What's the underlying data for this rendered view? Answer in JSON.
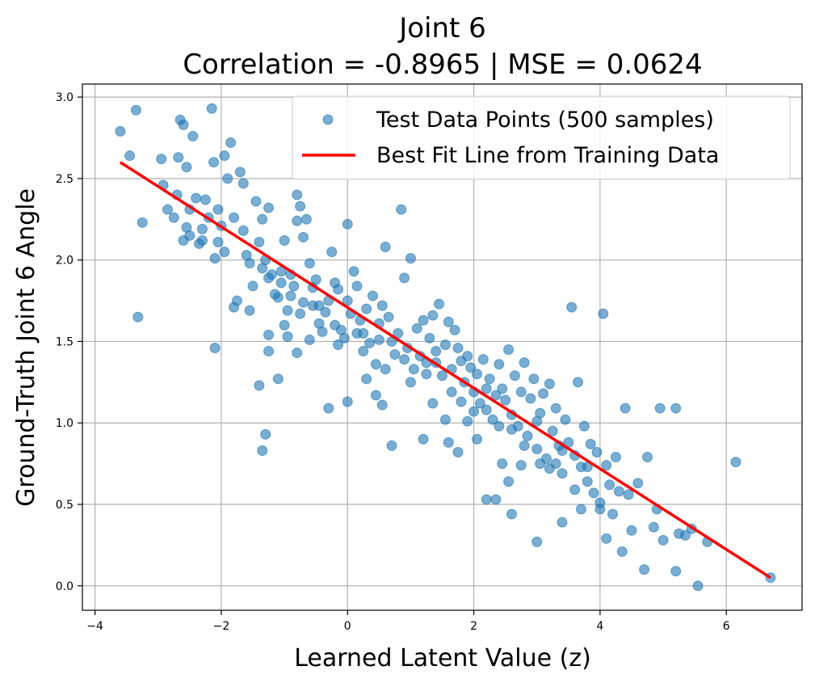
{
  "chart_data": {
    "type": "scatter",
    "title": "Joint 6",
    "subtitle": "Correlation = -0.8965 | MSE = 0.0624",
    "xlabel": "Learned Latent Value (z)",
    "ylabel": "Ground-Truth Joint 6 Angle",
    "xlim": [
      -4.2,
      7.2
    ],
    "ylim": [
      -0.15,
      3.08
    ],
    "xticks": [
      -4,
      -2,
      0,
      2,
      4,
      6
    ],
    "xtick_labels": [
      "−4",
      "−2",
      "0",
      "2",
      "4",
      "6"
    ],
    "yticks": [
      0.0,
      0.5,
      1.0,
      1.5,
      2.0,
      2.5,
      3.0
    ],
    "ytick_labels": [
      "0.0",
      "0.5",
      "1.0",
      "1.5",
      "2.0",
      "2.5",
      "3.0"
    ],
    "grid": true,
    "legend_position": "top-right",
    "colors": {
      "points": "#1f77b4",
      "fit_line": "#ff0000"
    },
    "series": [
      {
        "name": "Test Data Points (500 samples)",
        "type": "scatter",
        "points": [
          [
            -3.6,
            2.79
          ],
          [
            -3.45,
            2.64
          ],
          [
            -3.35,
            2.92
          ],
          [
            -3.25,
            2.23
          ],
          [
            -3.32,
            1.65
          ],
          [
            -2.95,
            2.62
          ],
          [
            -2.92,
            2.46
          ],
          [
            -2.75,
            2.26
          ],
          [
            -2.7,
            2.4
          ],
          [
            -2.68,
            2.63
          ],
          [
            -2.65,
            2.86
          ],
          [
            -2.6,
            2.83
          ],
          [
            -2.55,
            2.57
          ],
          [
            -2.5,
            2.31
          ],
          [
            -2.5,
            2.15
          ],
          [
            -2.45,
            2.76
          ],
          [
            -2.4,
            2.38
          ],
          [
            -2.35,
            2.1
          ],
          [
            -2.3,
            2.19
          ],
          [
            -2.2,
            2.26
          ],
          [
            -2.15,
            2.93
          ],
          [
            -2.12,
            2.6
          ],
          [
            -2.1,
            2.01
          ],
          [
            -2.05,
            2.31
          ],
          [
            -2.0,
            2.21
          ],
          [
            -1.95,
            2.64
          ],
          [
            -1.9,
            2.5
          ],
          [
            -1.85,
            2.72
          ],
          [
            -1.8,
            2.26
          ],
          [
            -1.8,
            1.71
          ],
          [
            -1.7,
            2.54
          ],
          [
            -1.65,
            2.47
          ],
          [
            -1.6,
            2.03
          ],
          [
            -1.55,
            1.69
          ],
          [
            -1.5,
            1.84
          ],
          [
            -1.45,
            2.36
          ],
          [
            -1.4,
            2.11
          ],
          [
            -1.35,
            2.25
          ],
          [
            -1.3,
            2.0
          ],
          [
            -1.25,
            2.32
          ],
          [
            -1.2,
            1.91
          ],
          [
            -1.15,
            1.79
          ],
          [
            -1.1,
            1.77
          ],
          [
            -1.05,
            1.93
          ],
          [
            -1.0,
            2.12
          ],
          [
            -1.0,
            1.6
          ],
          [
            -0.95,
            1.53
          ],
          [
            -0.9,
            1.91
          ],
          [
            -0.85,
            1.84
          ],
          [
            -0.8,
            2.4
          ],
          [
            -0.8,
            2.24
          ],
          [
            -0.75,
            2.33
          ],
          [
            -0.7,
            2.14
          ],
          [
            -0.7,
            1.74
          ],
          [
            -0.65,
            2.25
          ],
          [
            -0.6,
            1.98
          ],
          [
            -0.55,
            1.72
          ],
          [
            -0.5,
            1.88
          ],
          [
            -0.45,
            1.61
          ],
          [
            -0.4,
            1.56
          ],
          [
            -0.35,
            1.68
          ],
          [
            -0.3,
            1.75
          ],
          [
            -0.25,
            2.05
          ],
          [
            -0.2,
            1.86
          ],
          [
            -0.15,
            1.82
          ],
          [
            -0.1,
            1.57
          ],
          [
            -0.05,
            1.52
          ],
          [
            0.0,
            2.22
          ],
          [
            0.0,
            1.75
          ],
          [
            0.05,
            1.67
          ],
          [
            0.1,
            1.93
          ],
          [
            0.15,
            1.84
          ],
          [
            0.2,
            1.63
          ],
          [
            0.25,
            1.55
          ],
          [
            0.3,
            1.7
          ],
          [
            0.35,
            1.49
          ],
          [
            0.4,
            1.78
          ],
          [
            0.45,
            1.36
          ],
          [
            0.5,
            1.61
          ],
          [
            0.55,
            1.72
          ],
          [
            0.6,
            2.08
          ],
          [
            0.65,
            1.65
          ],
          [
            0.7,
            1.5
          ],
          [
            0.75,
            1.42
          ],
          [
            0.8,
            1.55
          ],
          [
            0.85,
            2.31
          ],
          [
            0.9,
            1.89
          ],
          [
            0.95,
            1.46
          ],
          [
            1.0,
            2.01
          ],
          [
            1.05,
            1.33
          ],
          [
            1.1,
            1.58
          ],
          [
            1.15,
            1.41
          ],
          [
            1.2,
            1.63
          ],
          [
            1.25,
            1.37
          ],
          [
            1.3,
            1.52
          ],
          [
            1.35,
            1.66
          ],
          [
            1.4,
            1.44
          ],
          [
            1.45,
            1.73
          ],
          [
            1.5,
            1.29
          ],
          [
            1.55,
            1.48
          ],
          [
            1.6,
            1.62
          ],
          [
            1.65,
            1.33
          ],
          [
            1.7,
            1.57
          ],
          [
            1.75,
            1.46
          ],
          [
            1.8,
            1.38
          ],
          [
            1.85,
            1.25
          ],
          [
            1.9,
            1.41
          ],
          [
            1.95,
            1.34
          ],
          [
            2.0,
            1.19
          ],
          [
            2.05,
            1.3
          ],
          [
            2.1,
            1.12
          ],
          [
            2.15,
            1.39
          ],
          [
            2.2,
            1.08
          ],
          [
            2.25,
            1.27
          ],
          [
            2.3,
            1.02
          ],
          [
            2.35,
            1.17
          ],
          [
            2.4,
            1.36
          ],
          [
            2.45,
            1.21
          ],
          [
            2.5,
            1.14
          ],
          [
            2.55,
            1.45
          ],
          [
            2.6,
            1.05
          ],
          [
            2.65,
            1.29
          ],
          [
            2.7,
            0.98
          ],
          [
            2.75,
            1.19
          ],
          [
            2.8,
            1.37
          ],
          [
            2.85,
            0.92
          ],
          [
            2.9,
            1.15
          ],
          [
            2.95,
            1.27
          ],
          [
            3.0,
            0.84
          ],
          [
            3.05,
            1.06
          ],
          [
            3.1,
            1.18
          ],
          [
            3.15,
            0.78
          ],
          [
            3.2,
            1.24
          ],
          [
            3.25,
            0.95
          ],
          [
            3.3,
            1.09
          ],
          [
            3.35,
            0.86
          ],
          [
            3.4,
            0.69
          ],
          [
            3.45,
            1.02
          ],
          [
            3.5,
            0.88
          ],
          [
            3.55,
            1.71
          ],
          [
            3.6,
            0.8
          ],
          [
            3.65,
            1.25
          ],
          [
            3.7,
            0.73
          ],
          [
            3.75,
            0.98
          ],
          [
            3.8,
            0.64
          ],
          [
            3.85,
            0.87
          ],
          [
            3.9,
            0.57
          ],
          [
            3.95,
            0.82
          ],
          [
            4.0,
            0.51
          ],
          [
            4.05,
            1.67
          ],
          [
            4.1,
            0.74
          ],
          [
            4.15,
            0.62
          ],
          [
            4.2,
            0.44
          ],
          [
            4.25,
            0.79
          ],
          [
            4.3,
            0.58
          ],
          [
            4.35,
            0.21
          ],
          [
            4.4,
            1.09
          ],
          [
            4.45,
            0.56
          ],
          [
            4.5,
            0.34
          ],
          [
            4.6,
            0.63
          ],
          [
            4.7,
            0.1
          ],
          [
            4.75,
            0.79
          ],
          [
            4.9,
            0.47
          ],
          [
            4.95,
            1.09
          ],
          [
            5.0,
            0.28
          ],
          [
            5.2,
            1.09
          ],
          [
            5.25,
            0.32
          ],
          [
            5.35,
            0.31
          ],
          [
            5.45,
            0.35
          ],
          [
            5.55,
            0.0
          ],
          [
            5.7,
            0.27
          ],
          [
            6.15,
            0.76
          ],
          [
            6.7,
            0.05
          ],
          [
            5.2,
            0.09
          ],
          [
            4.85,
            0.36
          ],
          [
            -1.35,
            0.83
          ],
          [
            -1.3,
            0.93
          ],
          [
            -1.4,
            1.23
          ],
          [
            -1.1,
            1.27
          ],
          [
            -0.8,
            1.43
          ],
          [
            -2.1,
            1.46
          ],
          [
            -0.3,
            1.09
          ],
          [
            0.0,
            1.13
          ],
          [
            0.7,
            0.86
          ],
          [
            1.2,
            0.9
          ],
          [
            1.6,
            0.88
          ],
          [
            1.75,
            0.82
          ],
          [
            2.2,
            0.53
          ],
          [
            2.35,
            0.53
          ],
          [
            2.55,
            0.64
          ],
          [
            2.6,
            0.44
          ],
          [
            3.0,
            0.27
          ],
          [
            3.4,
            0.39
          ],
          [
            3.7,
            0.47
          ],
          [
            4.1,
            0.29
          ],
          [
            -1.25,
            1.54
          ],
          [
            -1.25,
            1.44
          ],
          [
            -0.95,
            1.69
          ],
          [
            -0.6,
            1.51
          ],
          [
            0.3,
            1.27
          ],
          [
            0.45,
            1.17
          ],
          [
            0.55,
            1.11
          ],
          [
            1.35,
            1.12
          ],
          [
            1.55,
            1.02
          ],
          [
            1.9,
            1.01
          ],
          [
            2.05,
            0.9
          ],
          [
            2.45,
            0.75
          ],
          [
            2.75,
            0.74
          ],
          [
            3.05,
            0.75
          ],
          [
            3.3,
            0.75
          ],
          [
            -2.6,
            2.12
          ],
          [
            -2.3,
            2.12
          ],
          [
            -2.05,
            2.11
          ],
          [
            -1.75,
            1.75
          ],
          [
            -1.55,
            1.98
          ],
          [
            -1.25,
            1.89
          ],
          [
            -0.9,
            1.78
          ],
          [
            -0.55,
            1.83
          ],
          [
            -0.2,
            1.6
          ],
          [
            0.15,
            1.55
          ],
          [
            0.5,
            1.51
          ],
          [
            0.9,
            1.39
          ],
          [
            1.25,
            1.3
          ],
          [
            1.65,
            1.19
          ],
          [
            2.0,
            1.07
          ],
          [
            2.4,
            0.98
          ],
          [
            2.8,
            0.86
          ],
          [
            3.2,
            0.72
          ],
          [
            3.6,
            0.59
          ],
          [
            4.0,
            0.47
          ],
          [
            -2.85,
            2.31
          ],
          [
            -2.55,
            2.2
          ],
          [
            -2.25,
            2.37
          ],
          [
            -1.95,
            2.05
          ],
          [
            -1.65,
            2.18
          ],
          [
            -1.35,
            1.95
          ],
          [
            -1.05,
            1.86
          ],
          [
            -0.75,
            1.67
          ],
          [
            -0.45,
            1.72
          ],
          [
            -0.15,
            1.48
          ],
          [
            0.25,
            1.44
          ],
          [
            0.6,
            1.33
          ],
          [
            1.0,
            1.25
          ],
          [
            1.4,
            1.37
          ],
          [
            1.8,
            1.13
          ],
          [
            2.2,
            1.21
          ],
          [
            2.6,
            0.96
          ],
          [
            3.0,
            1.01
          ],
          [
            3.4,
            0.83
          ],
          [
            3.8,
            0.73
          ]
        ]
      },
      {
        "name": "Best Fit Line from Training Data",
        "type": "line",
        "x": [
          -3.6,
          6.7
        ],
        "y": [
          2.6,
          0.05
        ]
      }
    ]
  }
}
